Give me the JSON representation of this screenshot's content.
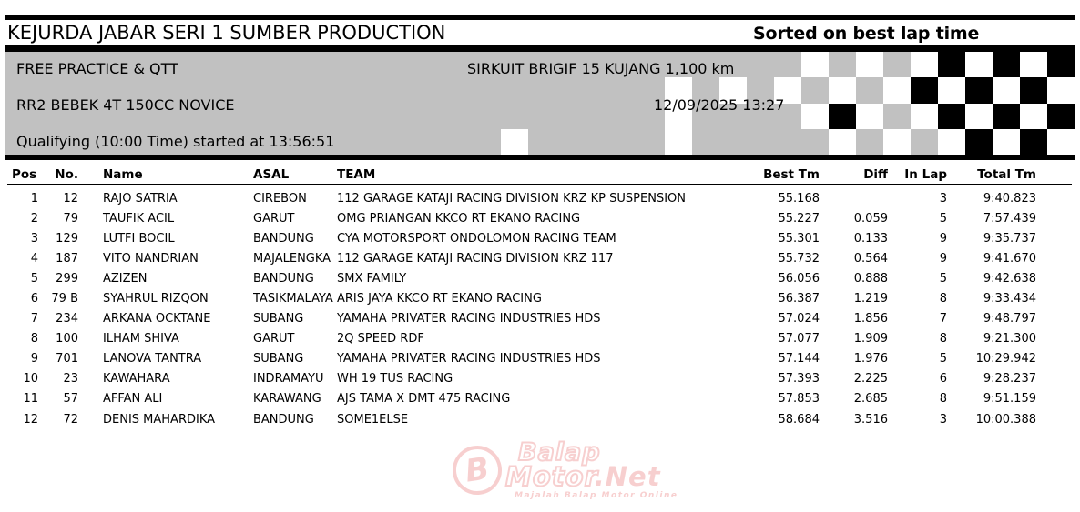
{
  "title_bar": {
    "title": "KEJURDA JABAR SERI 1 SUMBER PRODUCTION",
    "sort_note": "Sorted on best lap time"
  },
  "event_info": {
    "session": "FREE PRACTICE & QTT",
    "circuit": "SIRKUIT BRIGIF 15 KUJANG 1,100 km",
    "category": "RR2 BEBEK 4T 150CC NOVICE",
    "datetime": "12/09/2025 13:27",
    "qualifying_note": "Qualifying (10:00 Time) started at 13:56:51"
  },
  "checkered_flag": {
    "cell_colors": {
      "g": "#c1c1c1",
      "w": "#ffffff",
      "b": "#000000"
    },
    "pattern": [
      "gggggggggggwgwgwbwbwb",
      "ggggggwgwgwgwgwbwbwbw",
      "ggggggwggggwbwgwbwbwb",
      "wgggggwgggggwgwgwbwbw"
    ]
  },
  "results_table": {
    "columns": [
      "Pos",
      "No.",
      "Name",
      "ASAL",
      "TEAM",
      "Best Tm",
      "Diff",
      "In Lap",
      "Total Tm"
    ],
    "rows": [
      {
        "pos": "1",
        "no": "12",
        "name": "RAJO SATRIA",
        "asal": "CIREBON",
        "team": "112 GARAGE KATAJI RACING DIVISION KRZ KP SUSPENSION",
        "best_tm": "55.168",
        "diff": "",
        "in_lap": "3",
        "total_tm": "9:40.823"
      },
      {
        "pos": "2",
        "no": "79",
        "name": "TAUFIK ACIL",
        "asal": "GARUT",
        "team": "OMG PRIANGAN KKCO RT EKANO RACING",
        "best_tm": "55.227",
        "diff": "0.059",
        "in_lap": "5",
        "total_tm": "7:57.439"
      },
      {
        "pos": "3",
        "no": "129",
        "name": "LUTFI BOCIL",
        "asal": "BANDUNG",
        "team": "CYA MOTORSPORT ONDOLOMON RACING TEAM",
        "best_tm": "55.301",
        "diff": "0.133",
        "in_lap": "9",
        "total_tm": "9:35.737"
      },
      {
        "pos": "4",
        "no": "187",
        "name": "VITO NANDRIAN",
        "asal": "MAJALENGKA",
        "team": "112 GARAGE KATAJI RACING DIVISION KRZ 117",
        "best_tm": "55.732",
        "diff": "0.564",
        "in_lap": "9",
        "total_tm": "9:41.670"
      },
      {
        "pos": "5",
        "no": "299",
        "name": "AZIZEN",
        "asal": "BANDUNG",
        "team": "SMX FAMILY",
        "best_tm": "56.056",
        "diff": "0.888",
        "in_lap": "5",
        "total_tm": "9:42.638"
      },
      {
        "pos": "6",
        "no": "79 B",
        "name": "SYAHRUL RIZQON",
        "asal": "TASIKMALAYA",
        "team": "ARIS JAYA KKCO RT EKANO RACING",
        "best_tm": "56.387",
        "diff": "1.219",
        "in_lap": "8",
        "total_tm": "9:33.434"
      },
      {
        "pos": "7",
        "no": "234",
        "name": "ARKANA OCKTANE",
        "asal": "SUBANG",
        "team": "YAMAHA PRIVATER RACING INDUSTRIES HDS",
        "best_tm": "57.024",
        "diff": "1.856",
        "in_lap": "7",
        "total_tm": "9:48.797"
      },
      {
        "pos": "8",
        "no": "100",
        "name": "ILHAM SHIVA",
        "asal": "GARUT",
        "team": "2Q SPEED RDF",
        "best_tm": "57.077",
        "diff": "1.909",
        "in_lap": "8",
        "total_tm": "9:21.300"
      },
      {
        "pos": "9",
        "no": "701",
        "name": "LANOVA TANTRA",
        "asal": "SUBANG",
        "team": "YAMAHA PRIVATER RACING INDUSTRIES HDS",
        "best_tm": "57.144",
        "diff": "1.976",
        "in_lap": "5",
        "total_tm": "10:29.942"
      },
      {
        "pos": "10",
        "no": "23",
        "name": "KAWAHARA",
        "asal": "INDRAMAYU",
        "team": "WH 19 TUS RACING",
        "best_tm": "57.393",
        "diff": "2.225",
        "in_lap": "6",
        "total_tm": "9:28.237"
      },
      {
        "pos": "11",
        "no": "57",
        "name": "AFFAN ALI",
        "asal": "KARAWANG",
        "team": "AJS TAMA X DMT 475 RACING",
        "best_tm": "57.853",
        "diff": "2.685",
        "in_lap": "8",
        "total_tm": "9:51.159"
      },
      {
        "pos": "12",
        "no": "72",
        "name": "DENIS MAHARDIKA",
        "asal": "BANDUNG",
        "team": "SOME1ELSE",
        "best_tm": "58.684",
        "diff": "3.516",
        "in_lap": "3",
        "total_tm": "10:00.388"
      }
    ]
  },
  "watermark": {
    "badge_letter": "B",
    "line1": "Balap",
    "line2_part1": "Motor",
    "line2_part2": ".Net",
    "tagline": "Majalah Balap Motor Online",
    "color": "#f2a9a9"
  }
}
